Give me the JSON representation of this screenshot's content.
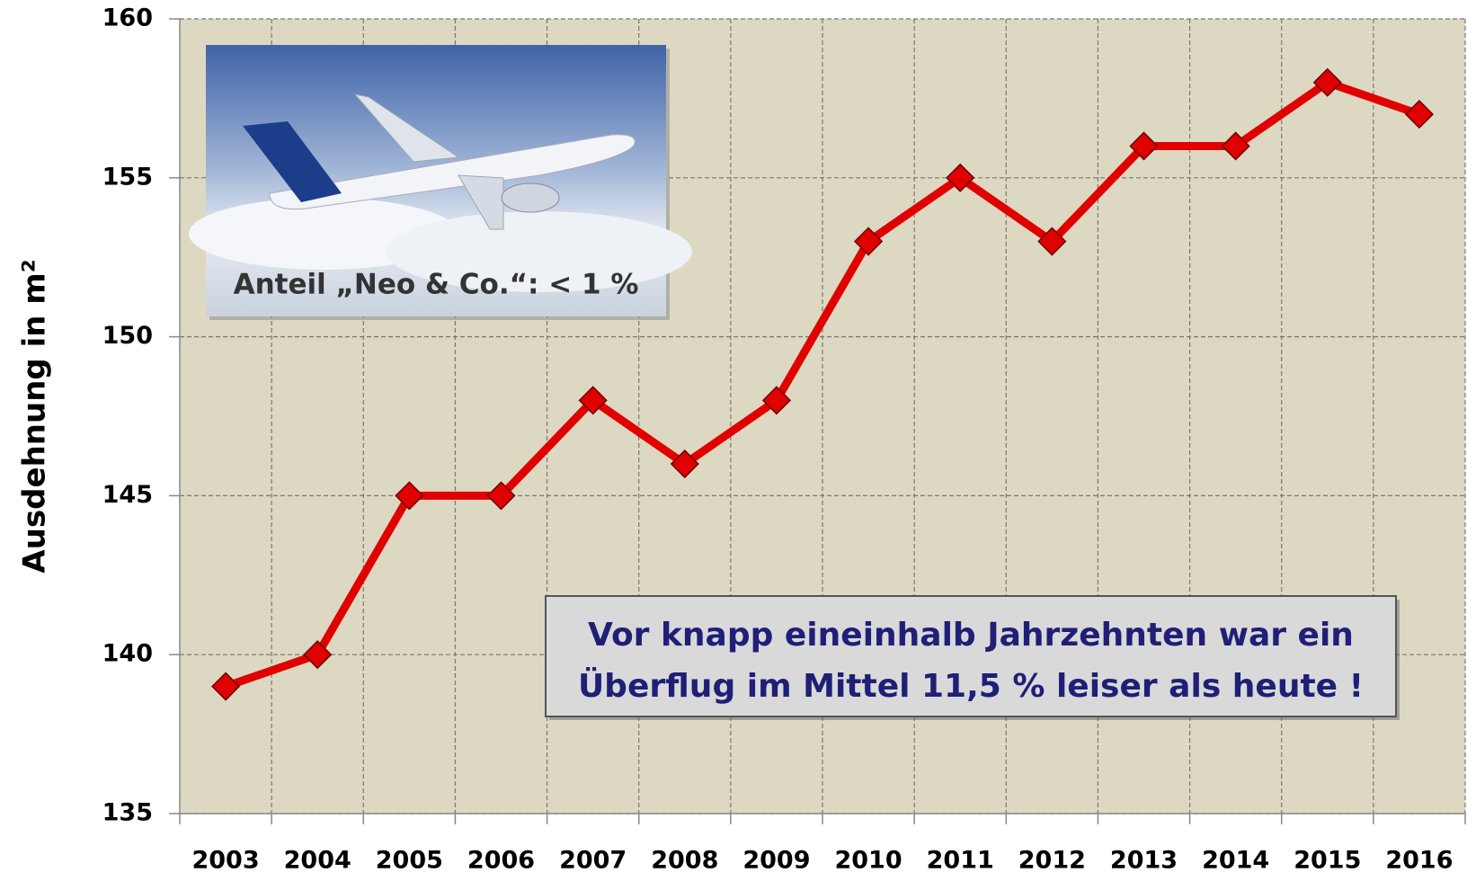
{
  "chart_data": {
    "type": "line",
    "y_label": "Ausdehnung in m²",
    "categories": [
      "2003",
      "2004",
      "2005",
      "2006",
      "2007",
      "2008",
      "2009",
      "2010",
      "2011",
      "2012",
      "2013",
      "2014",
      "2015",
      "2016"
    ],
    "series": [
      {
        "color": "#e00000",
        "values": [
          139,
          140,
          145,
          145,
          148,
          146,
          148,
          153,
          155,
          153,
          156,
          156,
          158,
          157
        ]
      }
    ],
    "ylim": [
      135,
      160
    ],
    "yticks": [
      135,
      140,
      145,
      150,
      155,
      160
    ],
    "grid": true,
    "image_caption": "Anteil „Neo & Co.“: < 1 %",
    "annotation": [
      "Vor knapp eineinhalb Jahrzehnten war ein",
      "Überflug im Mittel 11,5 % leiser als heute !"
    ]
  }
}
